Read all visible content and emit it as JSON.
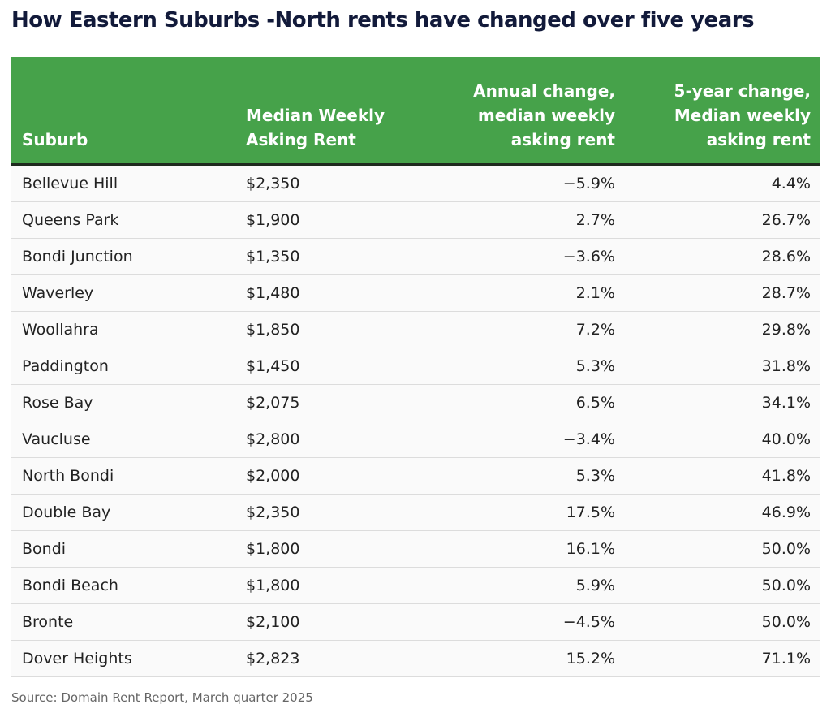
{
  "title": "How Eastern Suburbs -North rents have changed over five years",
  "table": {
    "headers": [
      [
        "Suburb"
      ],
      [
        "Median Weekly",
        "Asking Rent"
      ],
      [
        "Annual change,",
        "median weekly",
        "asking rent"
      ],
      [
        "5-year change,",
        "Median weekly",
        "asking rent"
      ]
    ],
    "rows": [
      [
        "Bellevue Hill",
        "$2,350",
        "−5.9%",
        "4.4%"
      ],
      [
        "Queens Park",
        "$1,900",
        "2.7%",
        "26.7%"
      ],
      [
        "Bondi Junction",
        "$1,350",
        "−3.6%",
        "28.6%"
      ],
      [
        "Waverley",
        "$1,480",
        "2.1%",
        "28.7%"
      ],
      [
        "Woollahra",
        "$1,850",
        "7.2%",
        "29.8%"
      ],
      [
        "Paddington",
        "$1,450",
        "5.3%",
        "31.8%"
      ],
      [
        "Rose Bay",
        "$2,075",
        "6.5%",
        "34.1%"
      ],
      [
        "Vaucluse",
        "$2,800",
        "−3.4%",
        "40.0%"
      ],
      [
        "North Bondi",
        "$2,000",
        "5.3%",
        "41.8%"
      ],
      [
        "Double Bay",
        "$2,350",
        "17.5%",
        "46.9%"
      ],
      [
        "Bondi",
        "$1,800",
        "16.1%",
        "50.0%"
      ],
      [
        "Bondi Beach",
        "$1,800",
        "5.9%",
        "50.0%"
      ],
      [
        "Bronte",
        "$2,100",
        "−4.5%",
        "50.0%"
      ],
      [
        "Dover Heights",
        "$2,823",
        "15.2%",
        "71.1%"
      ]
    ]
  },
  "source": "Source: Domain Rent Report, March quarter 2025"
}
